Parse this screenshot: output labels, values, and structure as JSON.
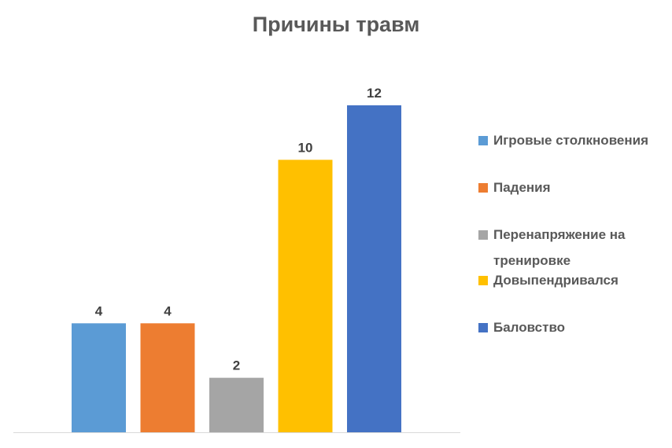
{
  "chart_data": {
    "type": "bar",
    "title": "Причины травм",
    "categories": [
      "Игровые  столкновения",
      "Падения",
      "Перенапряжение  на тренировке",
      "Довыпендривался",
      "Баловство"
    ],
    "values": [
      4,
      4,
      2,
      10,
      12
    ],
    "data_labels": [
      "4",
      "4",
      "2",
      "10",
      "12"
    ],
    "colors": [
      "#5B9BD5",
      "#ED7D31",
      "#A5A5A5",
      "#FFC000",
      "#4472C4"
    ],
    "ylim": [
      0,
      12
    ],
    "grid": false,
    "legend_position": "right"
  }
}
